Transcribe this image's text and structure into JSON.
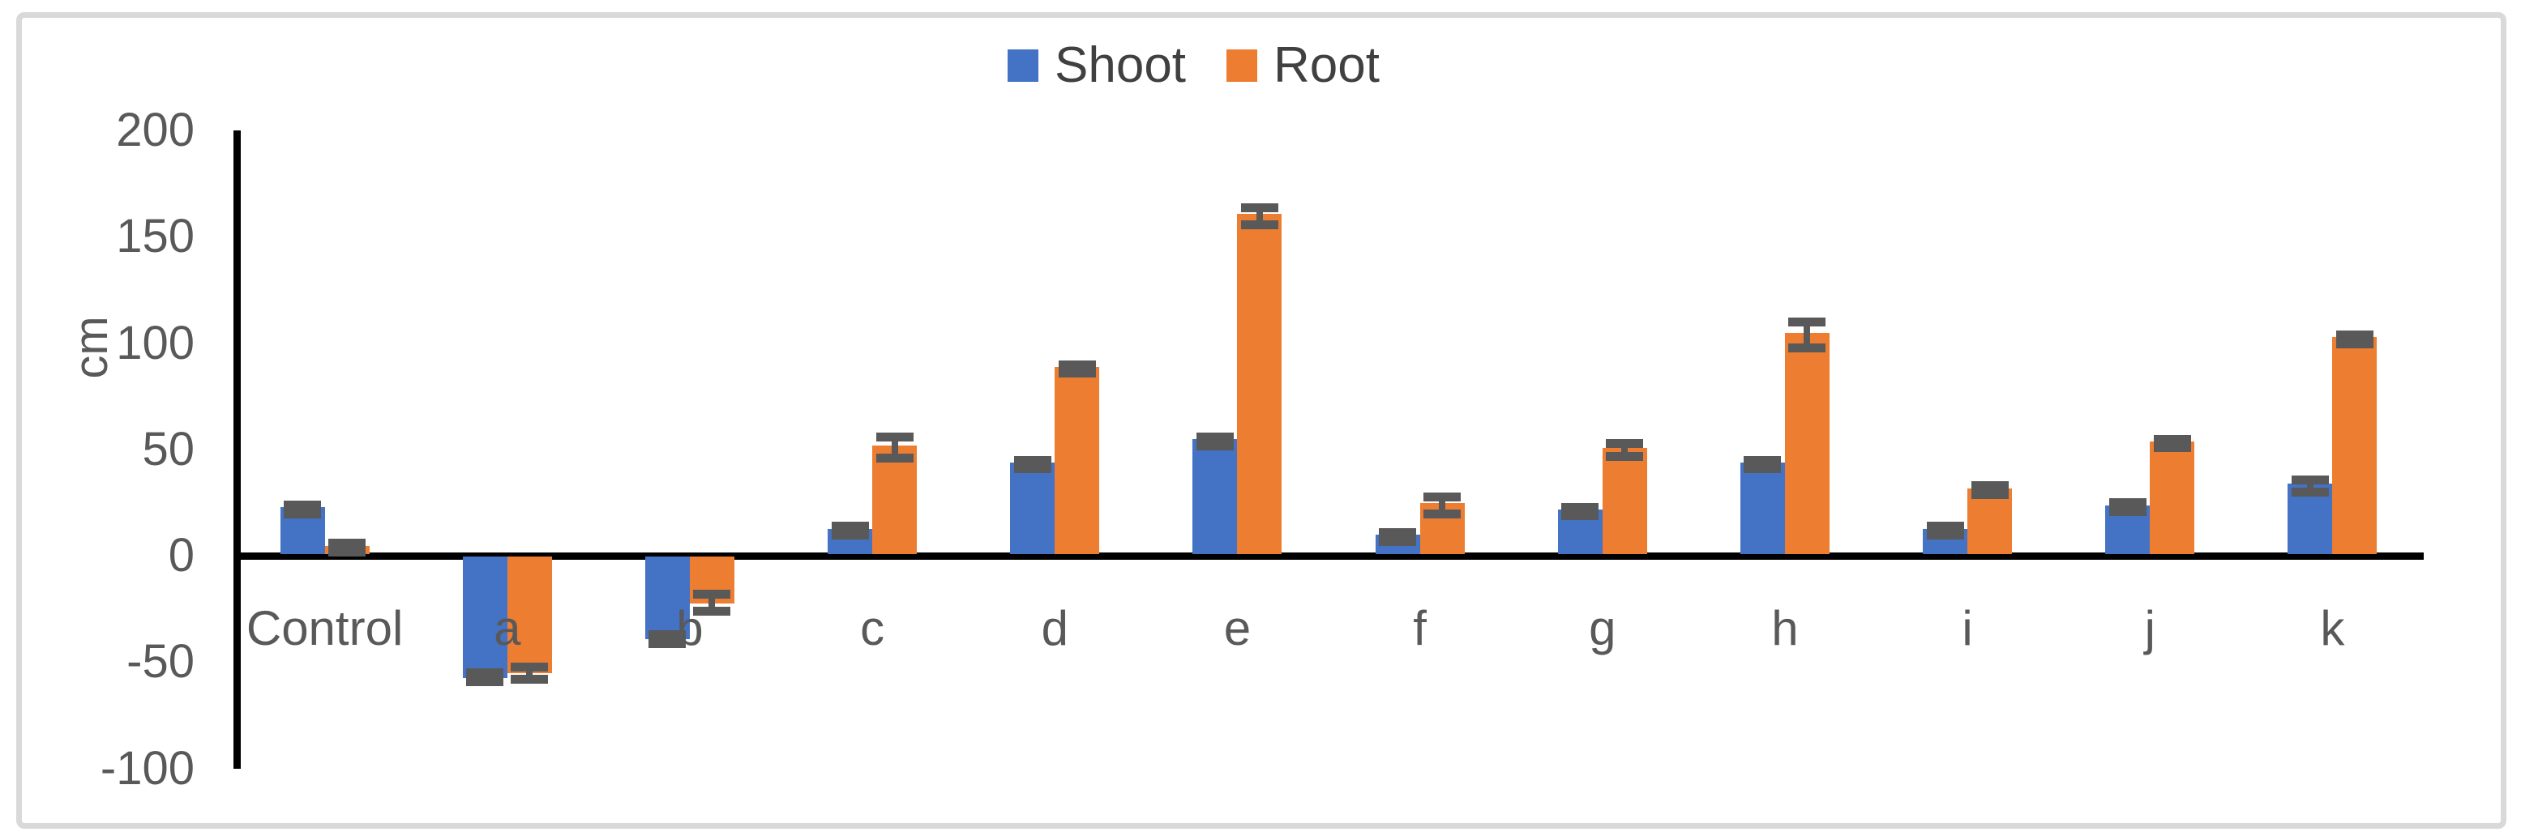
{
  "chart_data": {
    "type": "bar",
    "title": "",
    "ylabel": "cm",
    "xlabel": "",
    "categories": [
      "Control",
      "a",
      "b",
      "c",
      "d",
      "e",
      "f",
      "g",
      "h",
      "i",
      "j",
      "k"
    ],
    "series": [
      {
        "name": "Shoot",
        "color": "#4472C4",
        "values": [
          22,
          -57,
          -39,
          12,
          43,
          54,
          9,
          21,
          43,
          12,
          23,
          33
        ],
        "errors": [
          2,
          2,
          2,
          2,
          2,
          2,
          2,
          2,
          2,
          2,
          2,
          3
        ]
      },
      {
        "name": "Root",
        "color": "#ED7D31",
        "values": [
          4,
          -55,
          -22,
          51,
          88,
          160,
          24,
          50,
          104,
          31,
          53,
          102
        ],
        "errors": [
          2,
          3,
          4,
          5,
          2,
          4,
          4,
          3,
          6,
          2,
          2,
          2
        ]
      }
    ],
    "y_ticks": [
      200,
      150,
      100,
      50,
      0,
      -50,
      -100
    ],
    "ylim": [
      -100,
      200
    ],
    "grid": false,
    "legend_position": "top-center",
    "error_bars": true,
    "error_bar_color": "#595959",
    "axis_color": "#000000",
    "tick_label_color": "#595959",
    "frame_border_color": "#d9d9d9"
  }
}
